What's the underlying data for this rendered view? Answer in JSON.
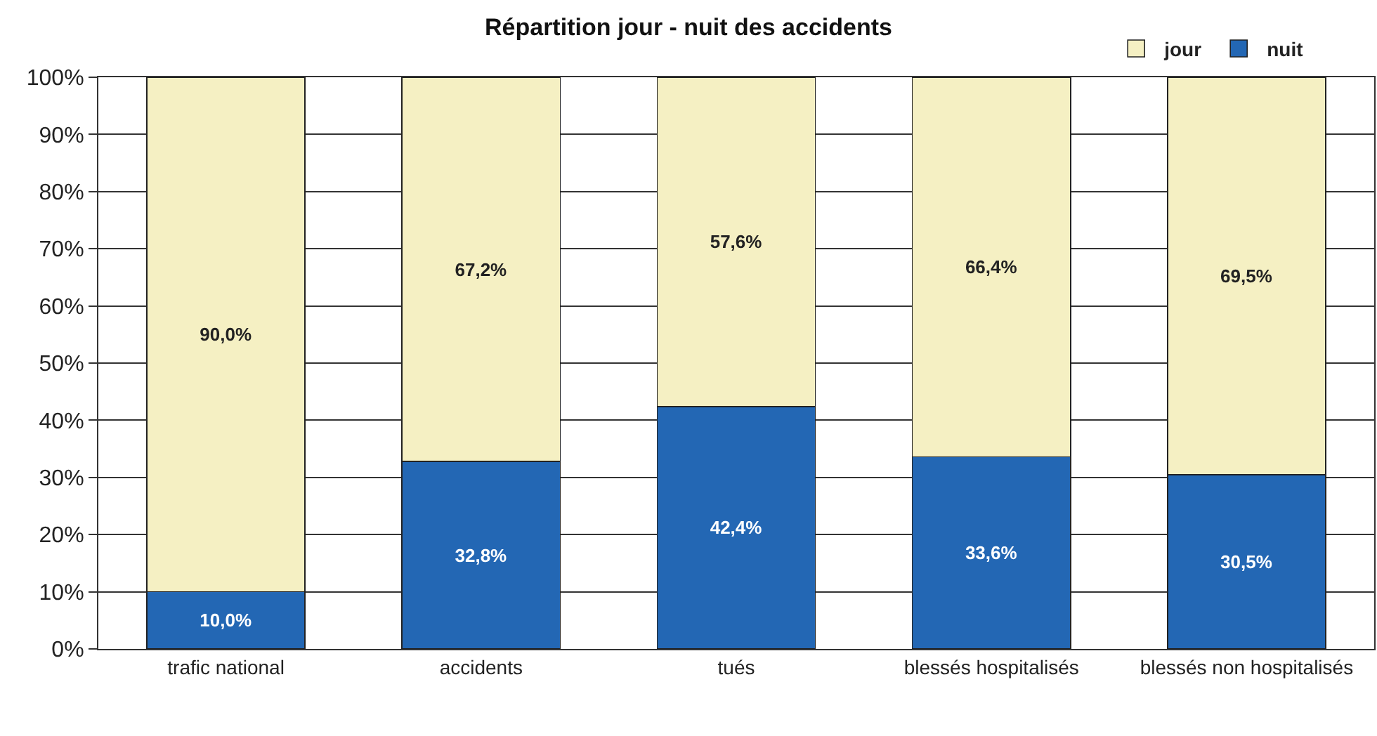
{
  "chart_data": {
    "type": "bar",
    "title": "Répartition jour - nuit des accidents",
    "stacked": true,
    "categories": [
      "trafic national",
      "accidents",
      "tués",
      "blessés hospitalisés",
      "blessés non hospitalisés"
    ],
    "series": [
      {
        "name": "nuit",
        "color": "#2367b4",
        "values": [
          10.0,
          32.8,
          42.4,
          33.6,
          30.5
        ],
        "value_labels": [
          "10,0%",
          "32,8%",
          "42,4%",
          "33,6%",
          "30,5%"
        ]
      },
      {
        "name": "jour",
        "color": "#f5f0c3",
        "values": [
          90.0,
          67.2,
          57.6,
          66.4,
          69.5
        ],
        "value_labels": [
          "90,0%",
          "67,2%",
          "57,6%",
          "66,4%",
          "69,5%"
        ]
      }
    ],
    "ylim": [
      0,
      100
    ],
    "yticks": [
      {
        "value": 0,
        "label": "0%"
      },
      {
        "value": 10,
        "label": "10%"
      },
      {
        "value": 20,
        "label": "20%"
      },
      {
        "value": 30,
        "label": "30%"
      },
      {
        "value": 40,
        "label": "40%"
      },
      {
        "value": 50,
        "label": "50%"
      },
      {
        "value": 60,
        "label": "60%"
      },
      {
        "value": 70,
        "label": "70%"
      },
      {
        "value": 80,
        "label": "80%"
      },
      {
        "value": 90,
        "label": "90%"
      },
      {
        "value": 100,
        "label": "100%"
      }
    ],
    "grid": "y",
    "legend": "top right"
  }
}
